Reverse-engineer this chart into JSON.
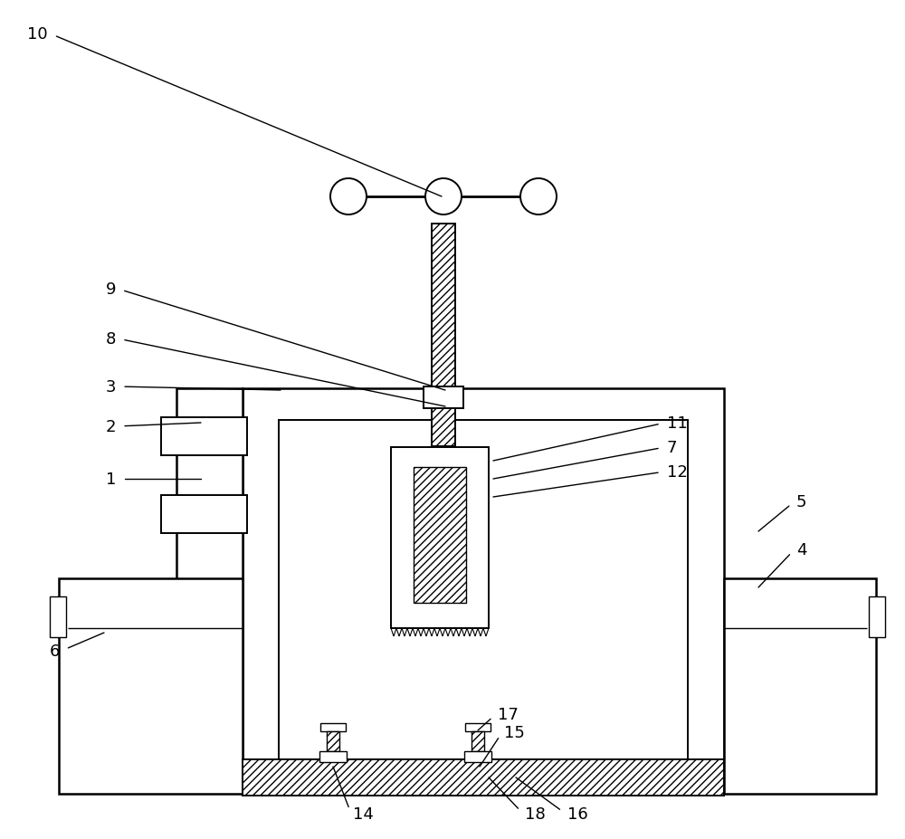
{
  "bg_color": "#ffffff",
  "line_color": "#000000",
  "figsize": [
    10.0,
    9.28
  ],
  "dpi": 100,
  "label_fontsize": 13,
  "annotations": [
    [
      "10",
      55,
      38,
      488,
      218
    ],
    [
      "9",
      130,
      320,
      492,
      432
    ],
    [
      "8",
      130,
      375,
      492,
      450
    ],
    [
      "3",
      130,
      428,
      310,
      432
    ],
    [
      "2",
      130,
      472,
      222,
      468
    ],
    [
      "1",
      130,
      530,
      222,
      530
    ],
    [
      "11",
      735,
      468,
      545,
      510
    ],
    [
      "7",
      735,
      495,
      545,
      530
    ],
    [
      "12",
      735,
      522,
      545,
      550
    ],
    [
      "6",
      68,
      720,
      115,
      700
    ],
    [
      "5",
      878,
      555,
      838,
      588
    ],
    [
      "4",
      878,
      608,
      838,
      650
    ],
    [
      "14",
      388,
      900,
      368,
      848
    ],
    [
      "15",
      555,
      810,
      530,
      848
    ],
    [
      "16",
      625,
      900,
      570,
      860
    ],
    [
      "17",
      548,
      790,
      528,
      808
    ],
    [
      "18",
      578,
      900,
      540,
      860
    ]
  ]
}
